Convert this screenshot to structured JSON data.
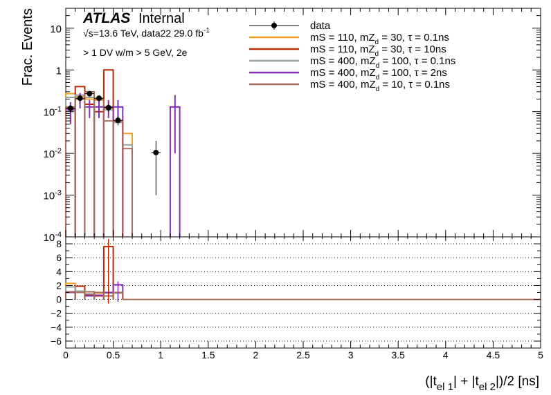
{
  "header": {
    "atlas": "ATLAS",
    "internal": "Internal",
    "energy": "√s=13.6 TeV, data22 29.0 fb",
    "energy_sup": "-1",
    "selection": "> 1 DV w/m > 5 GeV, 2e"
  },
  "chart_data": {
    "type": "line",
    "title": "",
    "xlabel": "(|t_el 1| + |t_el 2|)/2 [ns]",
    "ylabel": "Frac. Events",
    "xlim": [
      0,
      5
    ],
    "ylim": [
      0.0001,
      30
    ],
    "log_y": true,
    "legend_position": "top-right",
    "x_ticks": [
      "0",
      "0.5",
      "1",
      "1.5",
      "2",
      "2.5",
      "3",
      "3.5",
      "4",
      "4.5",
      "5"
    ],
    "y_ticks": [
      "10",
      "1",
      "10-1",
      "10-2",
      "10-3",
      "10-4"
    ],
    "ratio_ticks": [
      "8",
      "6",
      "4",
      "2",
      "0",
      "−2",
      "−4",
      "−6"
    ],
    "ratio_ylim": [
      -7,
      9
    ],
    "bin_width": 0.1,
    "data": {
      "name": "data",
      "color": "#000000",
      "points": [
        {
          "x": 0.05,
          "y": 0.12,
          "err": 0.025
        },
        {
          "x": 0.15,
          "y": 0.21,
          "err": 0.035
        },
        {
          "x": 0.25,
          "y": 0.27,
          "err": 0.04
        },
        {
          "x": 0.35,
          "y": 0.21,
          "err": 0.035
        },
        {
          "x": 0.45,
          "y": 0.125,
          "err": 0.025
        },
        {
          "x": 0.55,
          "y": 0.062,
          "err": 0.015
        },
        {
          "x": 0.95,
          "y": 0.0105,
          "err": 0.0095
        }
      ]
    },
    "series": [
      {
        "legend_text": "mS = 110, mZ   = 30, τ = 0.1ns",
        "legend_sub": "d",
        "color": "#f0a01e",
        "bins": [
          [
            0.0,
            0.1,
            0.27
          ],
          [
            0.1,
            0.2,
            0.23
          ],
          [
            0.2,
            0.3,
            0.2
          ],
          [
            0.3,
            0.4,
            0.19
          ],
          [
            0.4,
            0.5,
            0.12
          ],
          [
            0.5,
            0.6,
            0.06
          ],
          [
            0.6,
            0.7,
            0.03
          ]
        ],
        "ratio": [
          [
            0.0,
            0.1,
            2.3
          ],
          [
            0.1,
            0.2,
            1.1
          ],
          [
            0.2,
            0.3,
            0.7
          ],
          [
            0.3,
            0.4,
            0.9
          ],
          [
            0.4,
            0.5,
            1.0
          ],
          [
            0.5,
            0.6,
            1.0
          ]
        ]
      },
      {
        "legend_text": "mS = 110, mZ   = 30, τ = 10ns",
        "legend_sub": "d",
        "color": "#b92a00",
        "bins": [
          [
            0.0,
            0.1,
            0.12
          ],
          [
            0.1,
            0.2,
            0.4
          ],
          [
            0.2,
            0.3,
            0.15
          ],
          [
            0.3,
            0.4,
            0.1
          ],
          [
            0.4,
            0.5,
            1.0
          ],
          [
            0.5,
            0.6,
            0.06
          ]
        ],
        "ratio": [
          [
            0.0,
            0.1,
            1.0
          ],
          [
            0.1,
            0.2,
            1.9
          ],
          [
            0.2,
            0.3,
            0.6
          ],
          [
            0.3,
            0.4,
            0.5
          ],
          [
            0.4,
            0.5,
            7.6
          ],
          [
            0.5,
            0.6,
            1.0
          ]
        ]
      },
      {
        "legend_text": "mS = 400, mZ   = 100, τ = 0.1ns",
        "legend_sub": "d",
        "color": "#94a4a2",
        "bins": [
          [
            0.0,
            0.1,
            0.22
          ],
          [
            0.1,
            0.2,
            0.25
          ],
          [
            0.2,
            0.3,
            0.22
          ],
          [
            0.3,
            0.4,
            0.2
          ],
          [
            0.4,
            0.5,
            0.11
          ],
          [
            0.5,
            0.6,
            0.055
          ],
          [
            0.6,
            0.7,
            0.016
          ]
        ],
        "ratio": [
          [
            0.0,
            0.1,
            1.8
          ],
          [
            0.1,
            0.2,
            1.2
          ],
          [
            0.2,
            0.3,
            0.8
          ],
          [
            0.3,
            0.4,
            1.0
          ],
          [
            0.4,
            0.5,
            0.9
          ],
          [
            0.5,
            0.6,
            0.9
          ]
        ]
      },
      {
        "legend_text": "mS = 400, mZ   = 100, τ = 2ns",
        "legend_sub": "d",
        "color": "#832db6",
        "bins": [
          [
            0.0,
            0.1,
            0.11
          ],
          [
            0.1,
            0.2,
            0.2
          ],
          [
            0.2,
            0.3,
            0.13
          ],
          [
            0.3,
            0.4,
            0.13
          ],
          [
            0.4,
            0.5,
            0.13
          ],
          [
            0.5,
            0.6,
            0.13
          ],
          [
            1.1,
            1.2,
            0.13
          ]
        ],
        "errs": [
          [
            0.05,
            0.06
          ],
          [
            0.15,
            0.08
          ],
          [
            0.25,
            0.06
          ],
          [
            0.35,
            0.06
          ],
          [
            0.45,
            0.06
          ],
          [
            0.55,
            0.06
          ],
          [
            1.15,
            0.12
          ]
        ],
        "ratio": [
          [
            0.0,
            0.1,
            1.0
          ],
          [
            0.1,
            0.2,
            1.0
          ],
          [
            0.2,
            0.3,
            0.5
          ],
          [
            0.3,
            0.4,
            0.6
          ],
          [
            0.4,
            0.5,
            1.0
          ],
          [
            0.5,
            0.6,
            2.1
          ]
        ]
      },
      {
        "legend_text": "mS = 400, mZ   = 10, τ = 0.1ns",
        "legend_sub": "d",
        "color": "#a96b59",
        "bins": [
          [
            0.0,
            0.1,
            0.13
          ],
          [
            0.1,
            0.2,
            0.2
          ],
          [
            0.2,
            0.3,
            0.3
          ],
          [
            0.3,
            0.4,
            0.2
          ],
          [
            0.4,
            0.5,
            0.06
          ],
          [
            0.5,
            0.6,
            0.06
          ],
          [
            0.6,
            0.7,
            0.013
          ]
        ],
        "ratio": [
          [
            0.0,
            0.1,
            1.1
          ],
          [
            0.1,
            0.2,
            1.0
          ],
          [
            0.2,
            0.3,
            1.1
          ],
          [
            0.3,
            0.4,
            1.0
          ],
          [
            0.4,
            0.5,
            0.5
          ],
          [
            0.5,
            0.6,
            1.0
          ]
        ]
      }
    ]
  }
}
